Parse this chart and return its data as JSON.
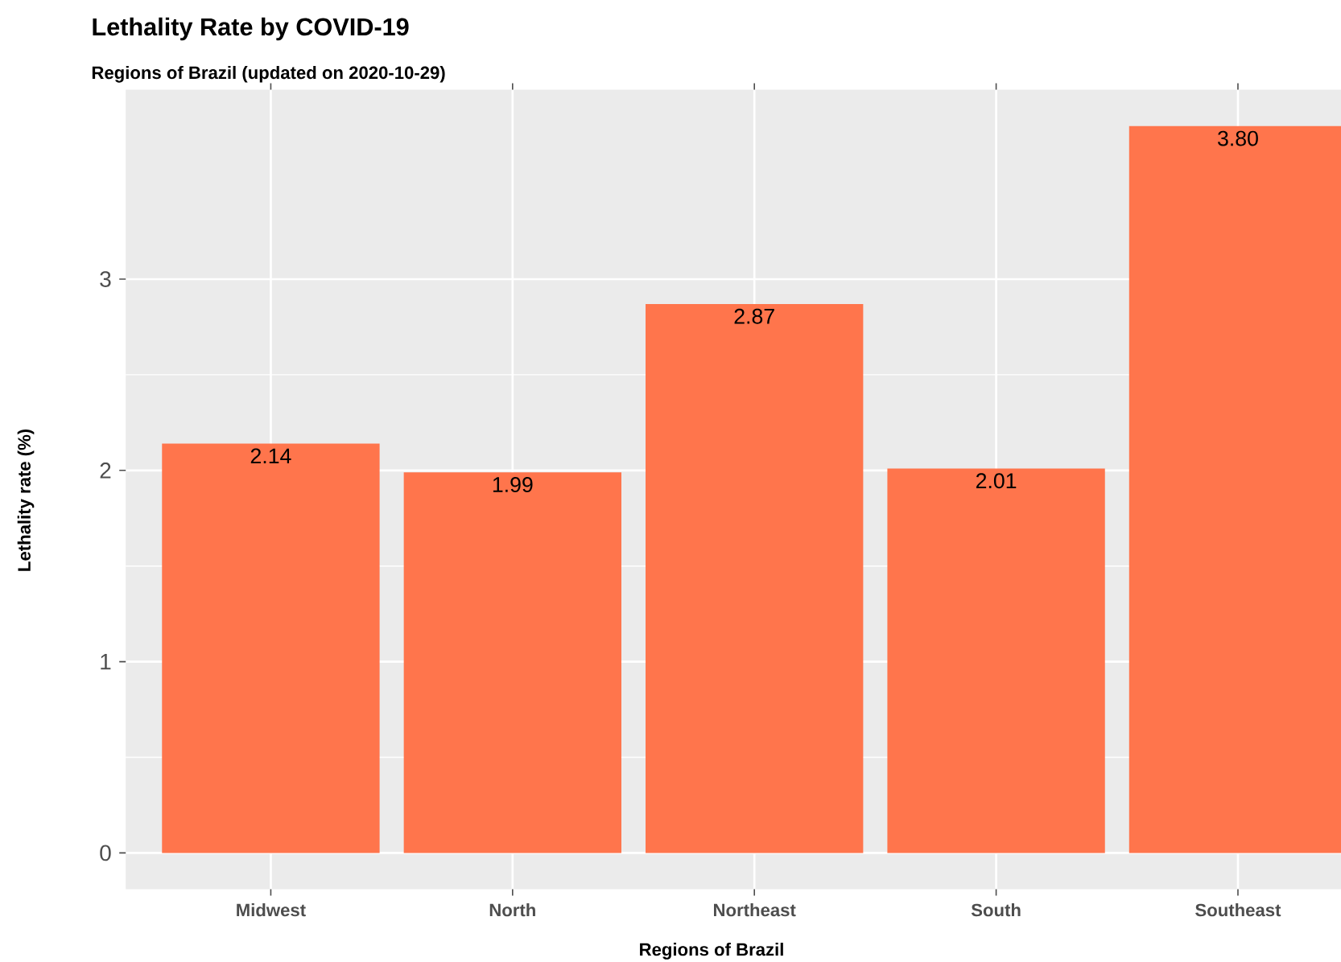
{
  "chart_data": {
    "type": "bar",
    "title": "Lethality Rate by COVID-19",
    "subtitle": "Regions of Brazil (updated on 2020-10-29)",
    "xlabel": "Regions of Brazil",
    "ylabel": "Lethality rate (%)",
    "categories": [
      "Midwest",
      "North",
      "Northeast",
      "South",
      "Southeast"
    ],
    "values": [
      2.14,
      1.99,
      2.87,
      2.01,
      3.8
    ],
    "value_labels": [
      "2.14",
      "1.99",
      "2.87",
      "2.01",
      "3.80"
    ],
    "color": "#ff754c",
    "ylim": [
      -0.19,
      3.99
    ],
    "yticks": [
      0,
      1,
      2,
      3
    ],
    "grid": true
  }
}
